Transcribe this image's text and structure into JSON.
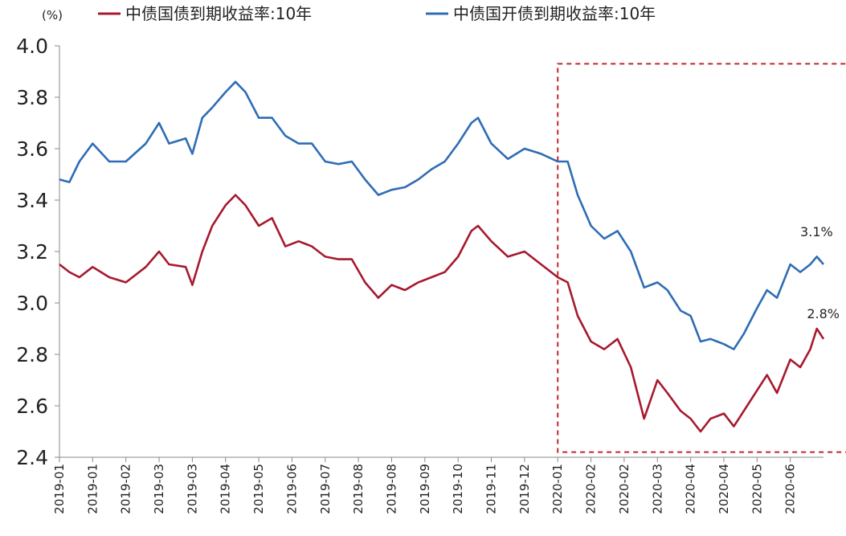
{
  "chart_data": {
    "type": "line",
    "unit_label": "(%)",
    "ylim": [
      2.4,
      4.0
    ],
    "yticks": [
      "4.0",
      "3.8",
      "3.6",
      "3.4",
      "3.2",
      "3.0",
      "2.8",
      "2.6",
      "2.4"
    ],
    "xticks": [
      "2019-01",
      "2019-01",
      "2019-02",
      "2019-03",
      "2019-03",
      "2019-04",
      "2019-05",
      "2019-06",
      "2019-07",
      "2019-08",
      "2019-08",
      "2019-09",
      "2019-10",
      "2019-11",
      "2019-12",
      "2020-01",
      "2020-02",
      "2020-02",
      "2020-03",
      "2020-04",
      "2020-04",
      "2020-05",
      "2020-06"
    ],
    "colors": {
      "series1": "#a6192e",
      "series2": "#2e6db4",
      "highlight": "#c0282d"
    },
    "series": [
      {
        "name": "中债国债到期收益率:10年",
        "points": [
          [
            0,
            3.15
          ],
          [
            0.3,
            3.12
          ],
          [
            0.6,
            3.1
          ],
          [
            1,
            3.14
          ],
          [
            1.5,
            3.1
          ],
          [
            2,
            3.08
          ],
          [
            2.6,
            3.14
          ],
          [
            3,
            3.2
          ],
          [
            3.3,
            3.15
          ],
          [
            3.8,
            3.14
          ],
          [
            4,
            3.07
          ],
          [
            4.3,
            3.2
          ],
          [
            4.6,
            3.3
          ],
          [
            5,
            3.38
          ],
          [
            5.3,
            3.42
          ],
          [
            5.6,
            3.38
          ],
          [
            6,
            3.3
          ],
          [
            6.4,
            3.33
          ],
          [
            6.8,
            3.22
          ],
          [
            7.2,
            3.24
          ],
          [
            7.6,
            3.22
          ],
          [
            8,
            3.18
          ],
          [
            8.4,
            3.17
          ],
          [
            8.8,
            3.17
          ],
          [
            9.2,
            3.08
          ],
          [
            9.6,
            3.02
          ],
          [
            10,
            3.07
          ],
          [
            10.4,
            3.05
          ],
          [
            10.8,
            3.08
          ],
          [
            11.2,
            3.1
          ],
          [
            11.6,
            3.12
          ],
          [
            12,
            3.18
          ],
          [
            12.4,
            3.28
          ],
          [
            12.6,
            3.3
          ],
          [
            13,
            3.24
          ],
          [
            13.5,
            3.18
          ],
          [
            14,
            3.2
          ],
          [
            14.5,
            3.15
          ],
          [
            15,
            3.1
          ],
          [
            15.3,
            3.08
          ],
          [
            15.6,
            2.95
          ],
          [
            16,
            2.85
          ],
          [
            16.4,
            2.82
          ],
          [
            16.8,
            2.86
          ],
          [
            17.2,
            2.75
          ],
          [
            17.6,
            2.55
          ],
          [
            18,
            2.7
          ],
          [
            18.3,
            2.65
          ],
          [
            18.7,
            2.58
          ],
          [
            19,
            2.55
          ],
          [
            19.3,
            2.5
          ],
          [
            19.6,
            2.55
          ],
          [
            20,
            2.57
          ],
          [
            20.3,
            2.52
          ],
          [
            20.6,
            2.58
          ],
          [
            21,
            2.66
          ],
          [
            21.3,
            2.72
          ],
          [
            21.6,
            2.65
          ],
          [
            22,
            2.78
          ],
          [
            22.3,
            2.75
          ],
          [
            22.6,
            2.82
          ],
          [
            22.8,
            2.9
          ],
          [
            23,
            2.86
          ]
        ]
      },
      {
        "name": "中债国开债到期收益率:10年",
        "points": [
          [
            0,
            3.48
          ],
          [
            0.3,
            3.47
          ],
          [
            0.6,
            3.55
          ],
          [
            1,
            3.62
          ],
          [
            1.5,
            3.55
          ],
          [
            2,
            3.55
          ],
          [
            2.6,
            3.62
          ],
          [
            3,
            3.7
          ],
          [
            3.3,
            3.62
          ],
          [
            3.8,
            3.64
          ],
          [
            4,
            3.58
          ],
          [
            4.3,
            3.72
          ],
          [
            4.6,
            3.76
          ],
          [
            5,
            3.82
          ],
          [
            5.3,
            3.86
          ],
          [
            5.6,
            3.82
          ],
          [
            6,
            3.72
          ],
          [
            6.4,
            3.72
          ],
          [
            6.8,
            3.65
          ],
          [
            7.2,
            3.62
          ],
          [
            7.6,
            3.62
          ],
          [
            8,
            3.55
          ],
          [
            8.4,
            3.54
          ],
          [
            8.8,
            3.55
          ],
          [
            9.2,
            3.48
          ],
          [
            9.6,
            3.42
          ],
          [
            10,
            3.44
          ],
          [
            10.4,
            3.45
          ],
          [
            10.8,
            3.48
          ],
          [
            11.2,
            3.52
          ],
          [
            11.6,
            3.55
          ],
          [
            12,
            3.62
          ],
          [
            12.4,
            3.7
          ],
          [
            12.6,
            3.72
          ],
          [
            13,
            3.62
          ],
          [
            13.5,
            3.56
          ],
          [
            14,
            3.6
          ],
          [
            14.5,
            3.58
          ],
          [
            15,
            3.55
          ],
          [
            15.3,
            3.55
          ],
          [
            15.6,
            3.42
          ],
          [
            16,
            3.3
          ],
          [
            16.4,
            3.25
          ],
          [
            16.8,
            3.28
          ],
          [
            17.2,
            3.2
          ],
          [
            17.6,
            3.06
          ],
          [
            18,
            3.08
          ],
          [
            18.3,
            3.05
          ],
          [
            18.7,
            2.97
          ],
          [
            19,
            2.95
          ],
          [
            19.3,
            2.85
          ],
          [
            19.6,
            2.86
          ],
          [
            20,
            2.84
          ],
          [
            20.3,
            2.82
          ],
          [
            20.6,
            2.88
          ],
          [
            21,
            2.98
          ],
          [
            21.3,
            3.05
          ],
          [
            21.6,
            3.02
          ],
          [
            22,
            3.15
          ],
          [
            22.3,
            3.12
          ],
          [
            22.6,
            3.15
          ],
          [
            22.8,
            3.18
          ],
          [
            23,
            3.15
          ]
        ]
      }
    ],
    "annotations": [
      {
        "text": "3.1%",
        "x": 22.3,
        "y": 3.26
      },
      {
        "text": "2.8%",
        "x": 22.5,
        "y": 2.94
      }
    ],
    "highlight_box": {
      "x_from": 15,
      "x_to": 23.8,
      "y_from": 2.42,
      "y_to": 3.93
    }
  }
}
